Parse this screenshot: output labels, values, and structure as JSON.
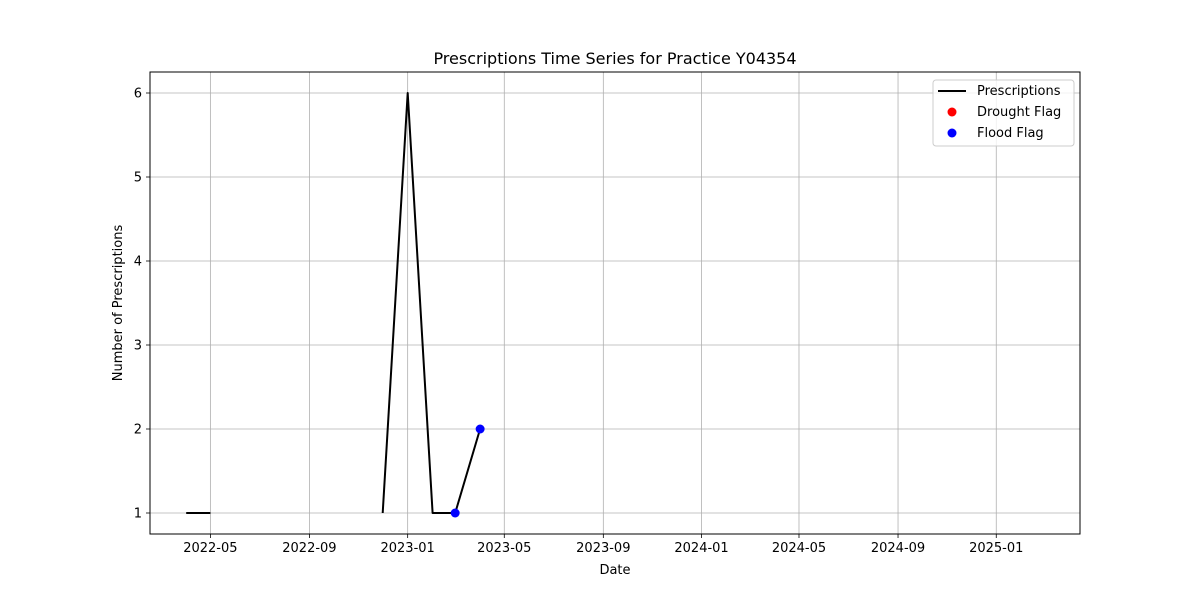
{
  "chart_data": {
    "type": "line",
    "title": "Prescriptions Time Series for Practice Y04354",
    "xlabel": "Date",
    "ylabel": "Number of Prescriptions",
    "x_tick_labels": [
      "2022-05",
      "2022-09",
      "2023-01",
      "2023-05",
      "2023-09",
      "2024-01",
      "2024-05",
      "2024-09",
      "2025-01"
    ],
    "y_tick_labels": [
      "1",
      "2",
      "3",
      "4",
      "5",
      "6"
    ],
    "xlim": [
      "2022-02-15",
      "2025-04-15"
    ],
    "ylim": [
      0.75,
      6.25
    ],
    "grid": true,
    "legend_position": "top-right",
    "series": [
      {
        "name": "Prescriptions",
        "kind": "line",
        "color": "#000000",
        "segments": [
          [
            {
              "x": "2022-04-01",
              "y": 1
            },
            {
              "x": "2022-05-01",
              "y": 1
            }
          ],
          [
            {
              "x": "2022-12-01",
              "y": 1
            },
            {
              "x": "2023-01-01",
              "y": 6
            },
            {
              "x": "2023-02-01",
              "y": 1
            },
            {
              "x": "2023-03-01",
              "y": 1
            },
            {
              "x": "2023-04-01",
              "y": 2
            }
          ]
        ]
      },
      {
        "name": "Drought Flag",
        "kind": "scatter",
        "color": "#ff0000",
        "points": []
      },
      {
        "name": "Flood Flag",
        "kind": "scatter",
        "color": "#0000ff",
        "points": [
          {
            "x": "2023-03-01",
            "y": 1
          },
          {
            "x": "2023-04-01",
            "y": 2
          }
        ]
      }
    ]
  }
}
